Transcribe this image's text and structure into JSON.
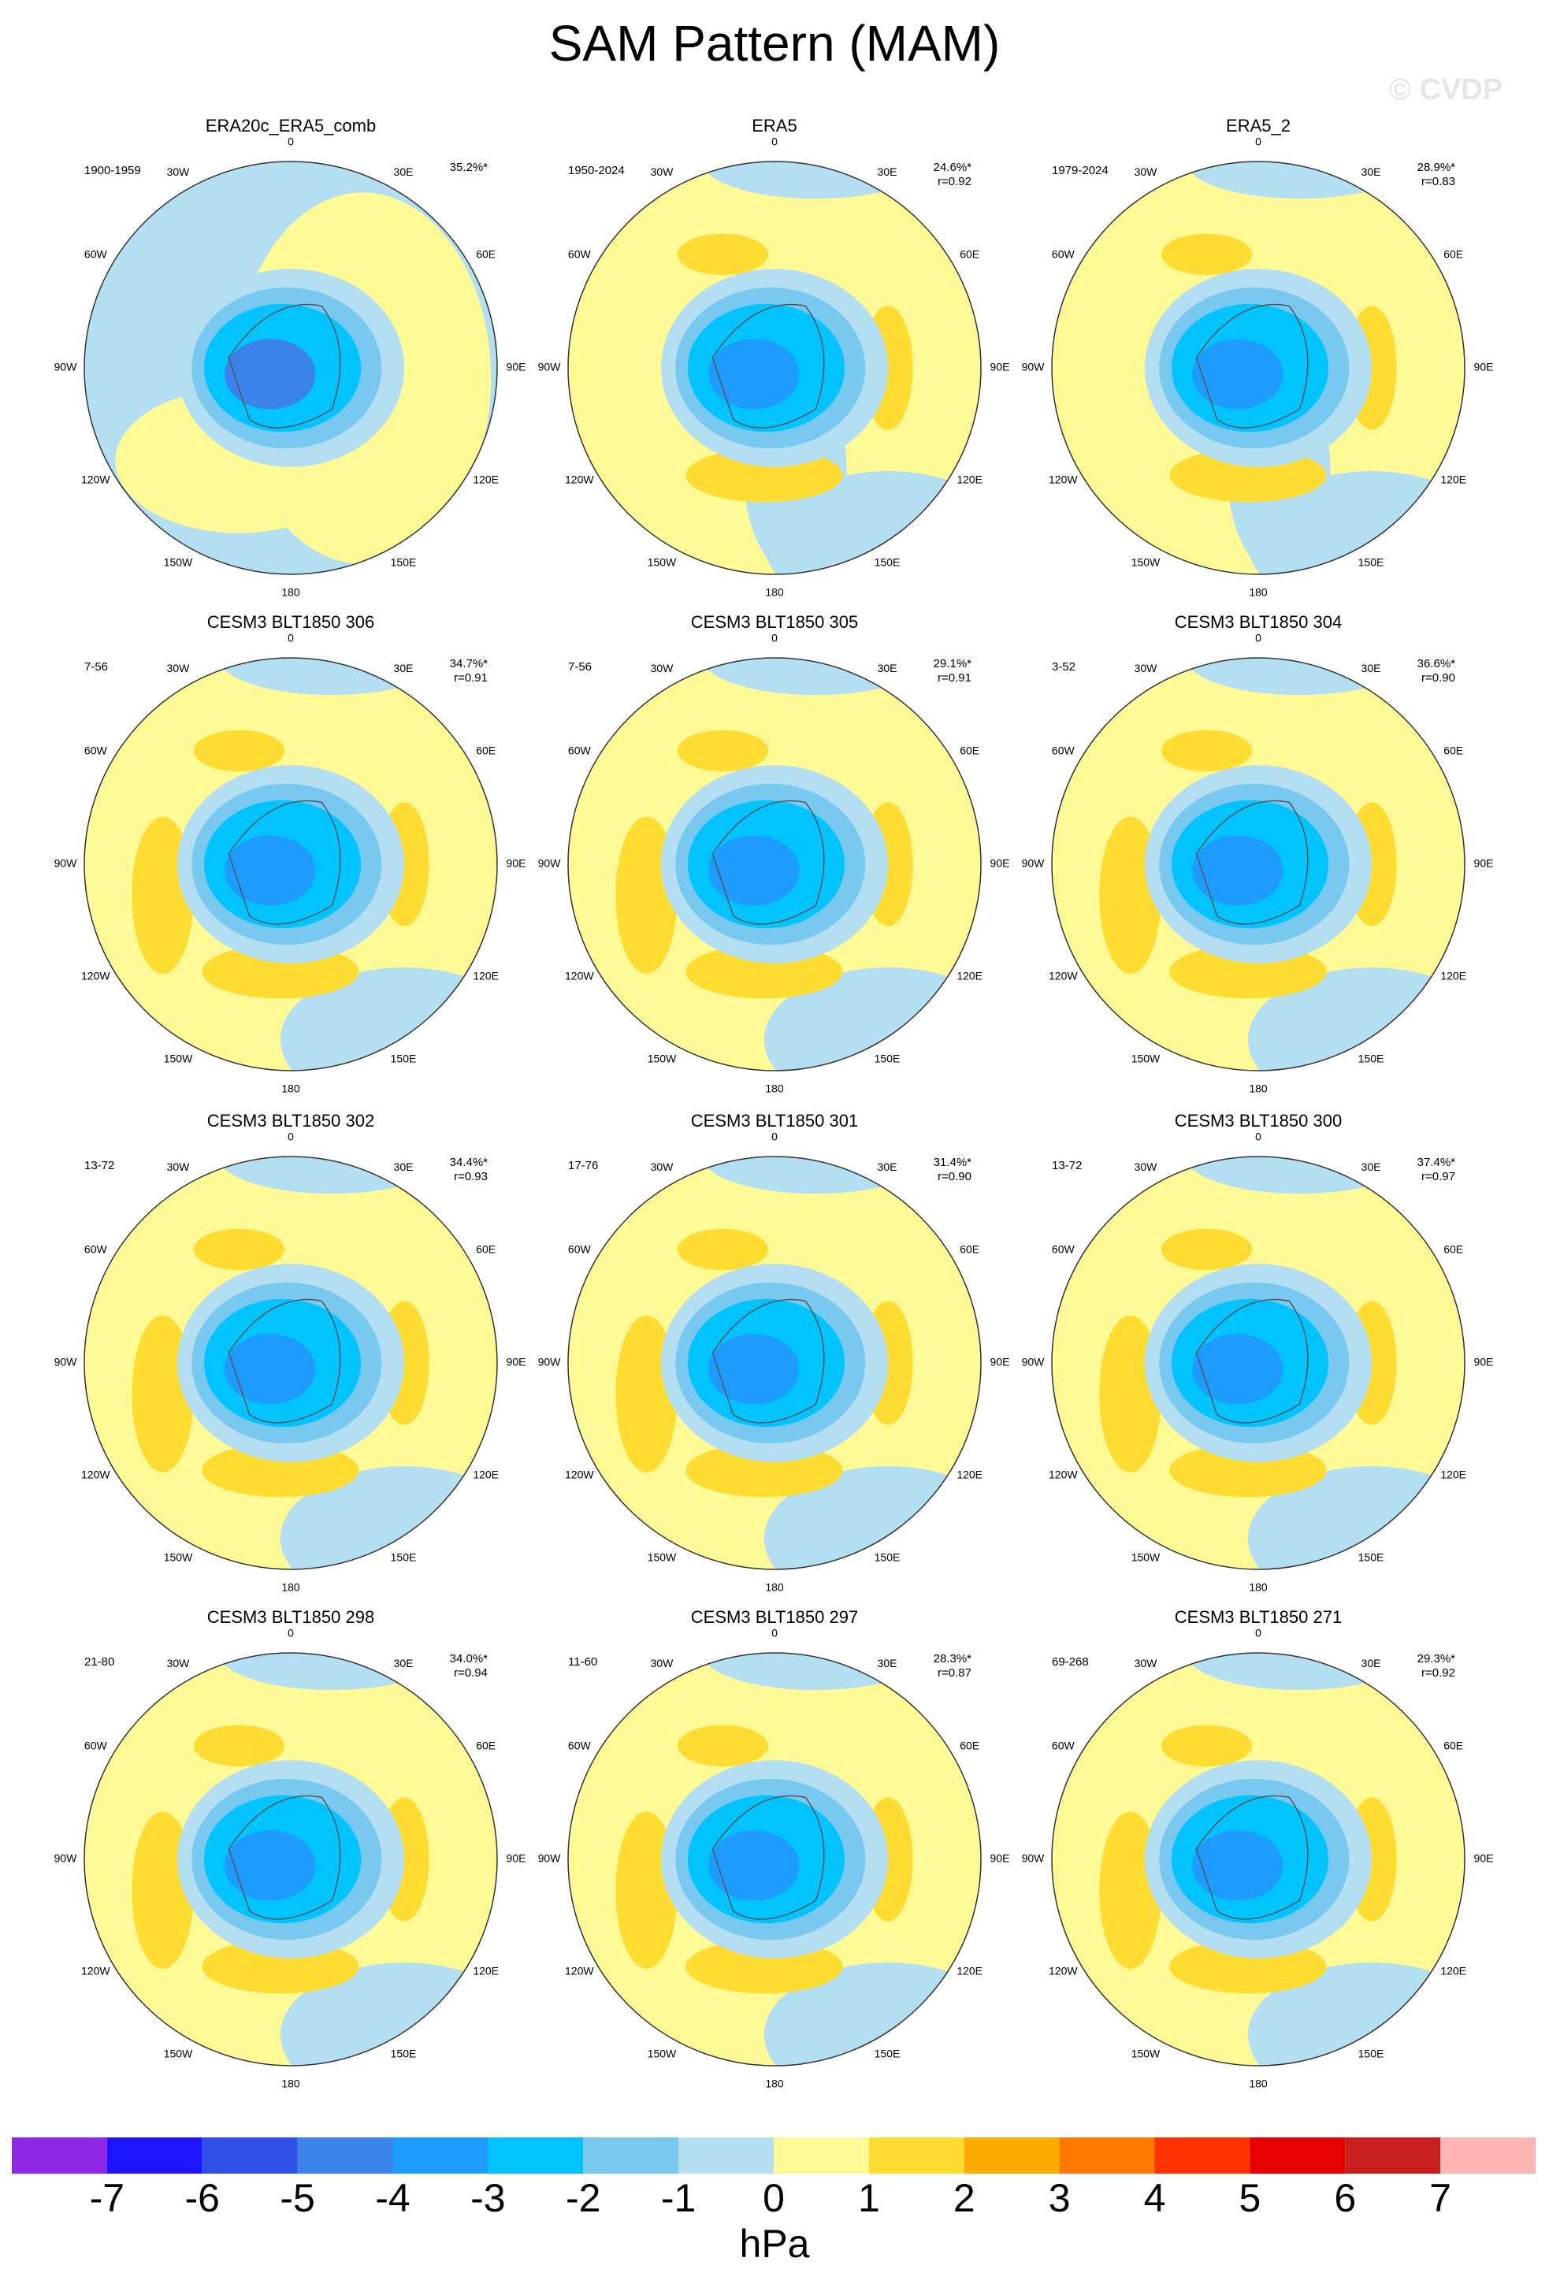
{
  "title": "SAM Pattern (MAM)",
  "watermark": "© CVDP",
  "lon_labels": [
    "0",
    "30E",
    "60E",
    "90E",
    "120E",
    "150E",
    "180",
    "150W",
    "120W",
    "90W",
    "60W",
    "30W"
  ],
  "panels": [
    {
      "title": "ERA20c_ERA5_comb",
      "period": "1900-1959",
      "pct": "35.2%*"
    },
    {
      "title": "ERA5",
      "period": "1950-2024",
      "pct": "24.6%*",
      "r": "r=0.92"
    },
    {
      "title": "ERA5_2",
      "period": "1979-2024",
      "pct": "28.9%*",
      "r": "r=0.83"
    },
    {
      "title": "CESM3 BLT1850 306",
      "period": "7-56",
      "pct": "34.7%*",
      "r": "r=0.91"
    },
    {
      "title": "CESM3 BLT1850 305",
      "period": "7-56",
      "pct": "29.1%*",
      "r": "r=0.91"
    },
    {
      "title": "CESM3 BLT1850 304",
      "period": "3-52",
      "pct": "36.6%*",
      "r": "r=0.90"
    },
    {
      "title": "CESM3 BLT1850 302",
      "period": "13-72",
      "pct": "34.4%*",
      "r": "r=0.93"
    },
    {
      "title": "CESM3 BLT1850 301",
      "period": "17-76",
      "pct": "31.4%*",
      "r": "r=0.90"
    },
    {
      "title": "CESM3 BLT1850 300",
      "period": "13-72",
      "pct": "37.4%*",
      "r": "r=0.97"
    },
    {
      "title": "CESM3 BLT1850 298",
      "period": "21-80",
      "pct": "34.0%*",
      "r": "r=0.94"
    },
    {
      "title": "CESM3 BLT1850 297",
      "period": "11-60",
      "pct": "28.3%*",
      "r": "r=0.87"
    },
    {
      "title": "CESM3 BLT1850 271",
      "period": "69-268",
      "pct": "29.3%*",
      "r": "r=0.92"
    }
  ],
  "colorbar": {
    "colors": [
      "#8c28e6",
      "#1e14ff",
      "#2d50e6",
      "#3c82eb",
      "#1e9bff",
      "#00c3ff",
      "#78c8f0",
      "#b4def2",
      "#fffa96",
      "#ffdc32",
      "#ffaa00",
      "#ff7800",
      "#ff3200",
      "#e60000",
      "#c81e1e",
      "#ffb4b4"
    ],
    "ticks": [
      -7,
      -6,
      -5,
      -4,
      -3,
      -2,
      -1,
      0,
      1,
      2,
      3,
      4,
      5,
      6,
      7
    ],
    "label": "hPa"
  }
}
